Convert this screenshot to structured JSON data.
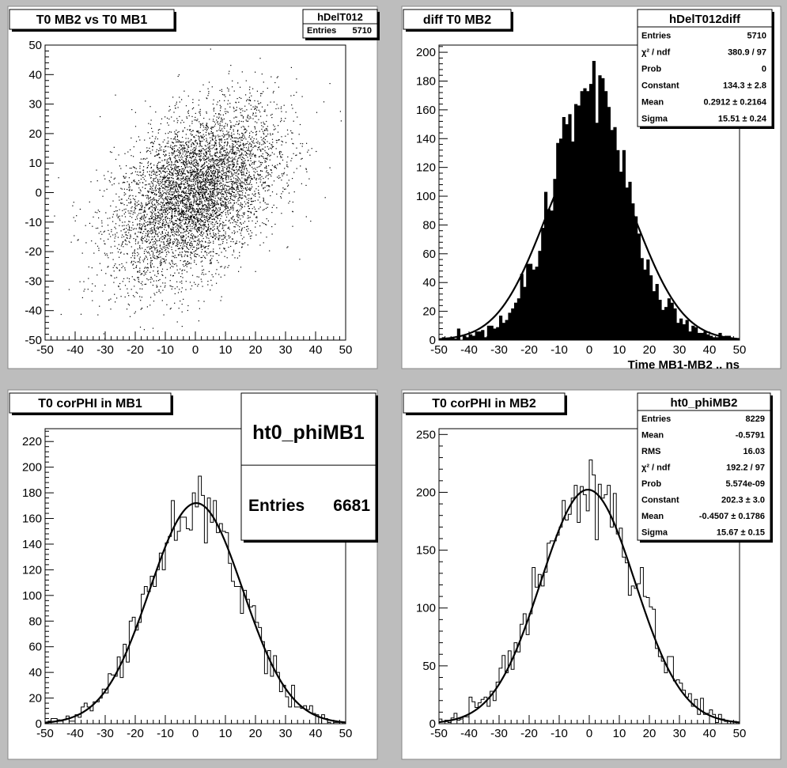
{
  "colors": {
    "canvas": "#bdbdbd",
    "pad": "#ffffff",
    "frame": "#000000",
    "fill": "#000000",
    "fit": "#000000"
  },
  "chart_data": [
    {
      "id": "p1",
      "type": "scatter",
      "title": "T0 MB2 vs T0 MB1",
      "xlim": [
        -50,
        50
      ],
      "ylim": [
        -50,
        50
      ],
      "x_ticks": [
        "-50",
        "-40",
        "-30",
        "-20",
        "-10",
        "0",
        "10",
        "20",
        "30",
        "40",
        "50"
      ],
      "y_ticks": [
        "-50",
        "-40",
        "-30",
        "-20",
        "-10",
        "0",
        "10",
        "20",
        "30",
        "40",
        "50"
      ],
      "xlabel": "",
      "grid": false,
      "stats": {
        "name": "hDelT012",
        "rows": [
          [
            "Entries",
            "5710"
          ]
        ]
      },
      "scatter_model": {
        "entries": 5710,
        "mean_x": 0,
        "mean_y": 0,
        "sigma_x": 13.5,
        "sigma_y": 14.5,
        "correlation": 0.45
      }
    },
    {
      "id": "p2",
      "type": "bar",
      "title": "diff T0 MB2",
      "xlabel": "Time MB1-MB2  ..  ns",
      "xlim": [
        -50,
        50
      ],
      "ylim": [
        0,
        205
      ],
      "x_ticks": [
        "-50",
        "-40",
        "-30",
        "-20",
        "-10",
        "0",
        "10",
        "20",
        "30",
        "40",
        "50"
      ],
      "y_ticks": [
        "0",
        "20",
        "40",
        "60",
        "80",
        "100",
        "120",
        "140",
        "160",
        "180",
        "200"
      ],
      "grid": false,
      "histogram": {
        "entries": 5710,
        "mean": 0.2912,
        "sigma": 15.51,
        "bins": 100,
        "shape": "peaked",
        "style": "filled"
      },
      "fit": {
        "constant": 134.3,
        "mean": 0.2912,
        "sigma": 15.51
      },
      "stats": {
        "name": "hDelT012diff",
        "rows": [
          [
            "Entries",
            "5710"
          ],
          [
            "χ² / ndf",
            "380.9 / 97"
          ],
          [
            "Prob",
            "0"
          ],
          [
            "Constant",
            "134.3 ± 2.8"
          ],
          [
            "Mean",
            "0.2912 ± 0.2164"
          ],
          [
            "Sigma",
            "15.51 ± 0.24"
          ]
        ]
      }
    },
    {
      "id": "p3",
      "type": "line",
      "title": "T0 corPHI in MB1",
      "xlabel": "",
      "xlim": [
        -50,
        50
      ],
      "ylim": [
        0,
        230
      ],
      "x_ticks": [
        "-50",
        "-40",
        "-30",
        "-20",
        "-10",
        "0",
        "10",
        "20",
        "30",
        "40",
        "50"
      ],
      "y_ticks": [
        "0",
        "20",
        "40",
        "60",
        "80",
        "100",
        "120",
        "140",
        "160",
        "180",
        "200",
        "220"
      ],
      "grid": false,
      "histogram": {
        "entries": 6681,
        "mean": 0,
        "sigma": 15.5,
        "bins": 100,
        "shape": "gaussian",
        "style": "step"
      },
      "fit": {
        "constant": 172,
        "mean": 0.3,
        "sigma": 15.5
      },
      "stats": {
        "name": "ht0_phiMB1",
        "rows": [
          [
            "Entries",
            "6681"
          ]
        ]
      }
    },
    {
      "id": "p4",
      "type": "line",
      "title": "T0 corPHI in MB2",
      "xlabel": "",
      "xlim": [
        -50,
        50
      ],
      "ylim": [
        0,
        255
      ],
      "x_ticks": [
        "-50",
        "-40",
        "-30",
        "-20",
        "-10",
        "0",
        "10",
        "20",
        "30",
        "40",
        "50"
      ],
      "y_ticks": [
        "0",
        "50",
        "100",
        "150",
        "200",
        "250"
      ],
      "grid": false,
      "histogram": {
        "entries": 8229,
        "mean": -0.5791,
        "sigma": 16.03,
        "bins": 100,
        "shape": "gaussian",
        "style": "step"
      },
      "fit": {
        "constant": 202.3,
        "mean": -0.4507,
        "sigma": 15.67
      },
      "stats": {
        "name": "ht0_phiMB2",
        "rows": [
          [
            "Entries",
            "8229"
          ],
          [
            "Mean",
            "-0.5791"
          ],
          [
            "RMS",
            "16.03"
          ],
          [
            "χ² / ndf",
            "192.2 / 97"
          ],
          [
            "Prob",
            "5.574e-09"
          ],
          [
            "Constant",
            "202.3 ± 3.0"
          ],
          [
            "Mean",
            "-0.4507 ± 0.1786"
          ],
          [
            "Sigma",
            "15.67 ± 0.15"
          ]
        ]
      }
    }
  ]
}
